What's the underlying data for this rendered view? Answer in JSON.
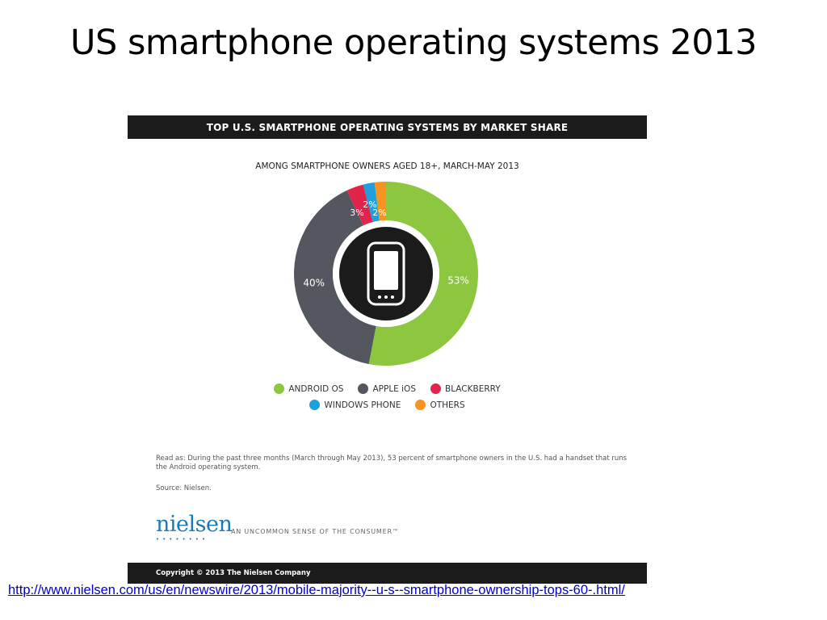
{
  "slide": {
    "title": "US smartphone operating systems 2013",
    "link": "http://www.nielsen.com/us/en/newswire/2013/mobile-majority--u-s--smartphone-ownership-tops-60-.html/"
  },
  "infographic": {
    "banner": "TOP U.S. SMARTPHONE OPERATING SYSTEMS BY MARKET SHARE",
    "subtitle": "AMONG SMARTPHONE OWNERS AGED 18+, MARCH-MAY 2013",
    "read_as": "Read as: During the past three months (March through May 2013), 53 percent of smartphone owners in the U.S. had a handset that runs the Android operating system.",
    "source": "Source: Nielsen.",
    "logo_text": "nielsen",
    "tagline": "AN UNCOMMON SENSE OF THE CONSUMER™",
    "copyright": "Copyright © 2013 The Nielsen Company",
    "center_icon": "smartphone-icon"
  },
  "chart_data": {
    "type": "pie",
    "subtype": "donut",
    "title": "TOP U.S. SMARTPHONE OPERATING SYSTEMS BY MARKET SHARE",
    "subtitle": "AMONG SMARTPHONE OWNERS AGED 18+, MARCH-MAY 2013",
    "unit": "%",
    "legend_position": "bottom",
    "slices": [
      {
        "name": "ANDROID OS",
        "value": 53,
        "label": "53%",
        "color": "#8dc63f"
      },
      {
        "name": "APPLE iOS",
        "value": 40,
        "label": "40%",
        "color": "#54575f"
      },
      {
        "name": "BLACKBERRY",
        "value": 3,
        "label": "3%",
        "color": "#e0244a"
      },
      {
        "name": "WINDOWS PHONE",
        "value": 2,
        "label": "2%",
        "color": "#1ea0dc"
      },
      {
        "name": "OTHERS",
        "value": 2,
        "label": "2%",
        "color": "#f7931e"
      }
    ]
  }
}
